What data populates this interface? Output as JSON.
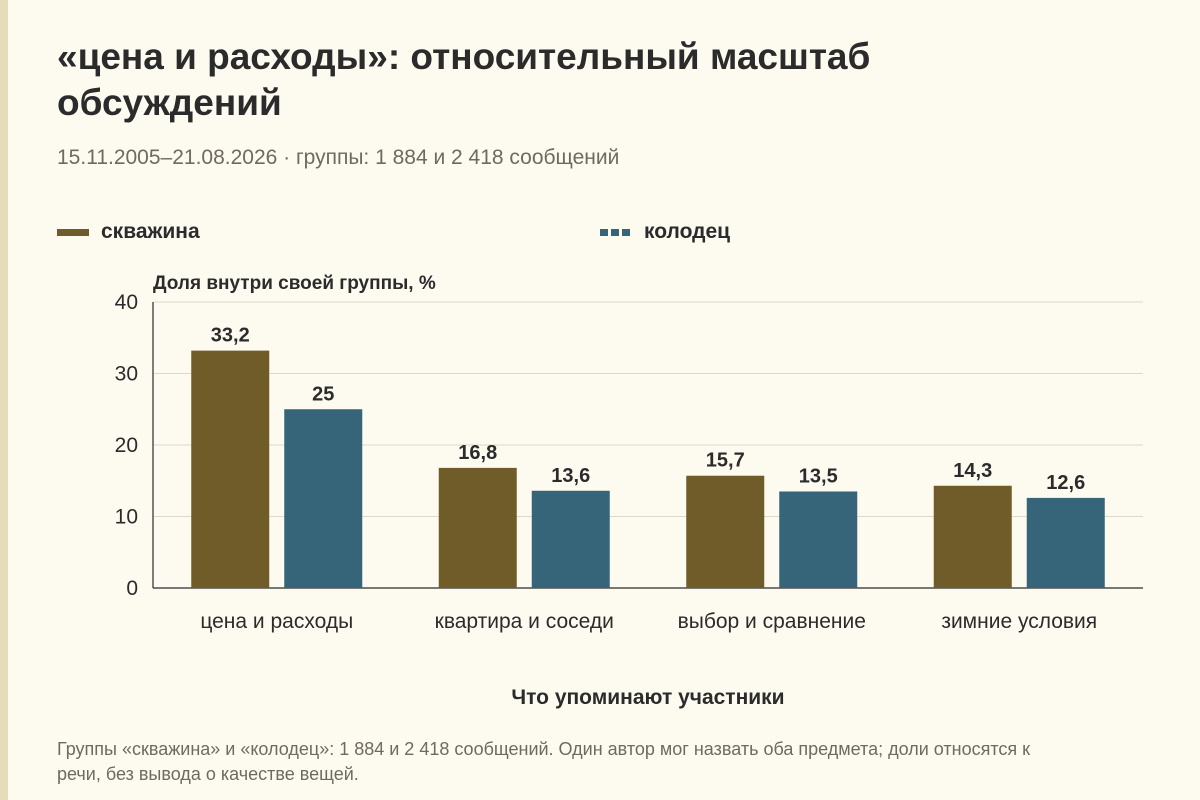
{
  "title": "«цена и расходы»: относительный масштаб обсуждений",
  "subtitle": "15.11.2005–21.08.2026 · группы: 1 884 и 2 418 сообщений",
  "footnote": "Группы «скважина» и «колодец»: 1 884 и 2 418 сообщений. Один автор мог назвать оба предмета; доли относятся к речи, без вывода о качестве вещей.",
  "colors": {
    "skvazhina": "#705c29",
    "kolodec": "#366579",
    "grid": "#dcd8cc",
    "background": "#fdfaf0"
  },
  "chart_data": {
    "type": "bar",
    "title": "«цена и расходы»: относительный масштаб обсуждений",
    "xlabel": "Что упоминают участники",
    "ylabel": "Доля внутри своей группы, %",
    "categories": [
      "цена и расходы",
      "квартира и соседи",
      "выбор и сравнение",
      "зимние условия"
    ],
    "series": [
      {
        "name": "скважина",
        "values": [
          33.2,
          16.8,
          15.7,
          14.3
        ],
        "labels": [
          "33,2",
          "16,8",
          "15,7",
          "14,3"
        ],
        "color": "#705c29"
      },
      {
        "name": "колодец",
        "values": [
          25,
          13.6,
          13.5,
          12.6
        ],
        "labels": [
          "25",
          "13,6",
          "13,5",
          "12,6"
        ],
        "color": "#366579"
      }
    ],
    "ylim": [
      0,
      40
    ],
    "yticks": [
      "0",
      "10",
      "20",
      "30",
      "40"
    ],
    "grid": true,
    "legend": "top"
  }
}
